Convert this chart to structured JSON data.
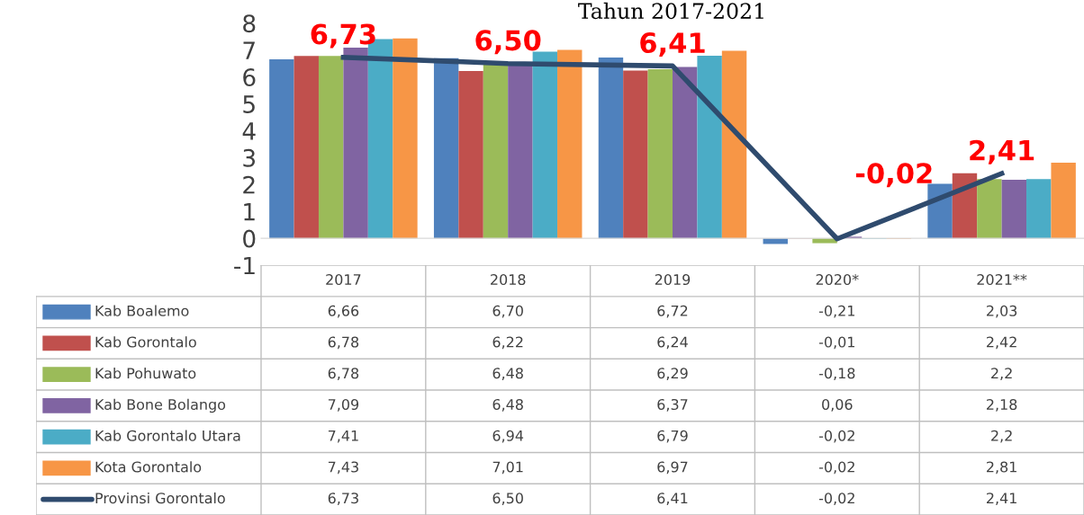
{
  "chart_data": {
    "type": "bar",
    "title": "Tahun 2017-2021",
    "categories": [
      "2017",
      "2018",
      "2019",
      "2020*",
      "2021**"
    ],
    "series": [
      {
        "name": "Kab Boalemo",
        "color": "#4f81bd",
        "values": [
          6.66,
          6.7,
          6.72,
          -0.21,
          2.03
        ],
        "value_labels": [
          "6,66",
          "6,70",
          "6,72",
          "-0,21",
          "2,03"
        ]
      },
      {
        "name": "Kab Gorontalo",
        "color": "#c0504d",
        "values": [
          6.78,
          6.22,
          6.24,
          -0.01,
          2.42
        ],
        "value_labels": [
          "6,78",
          "6,22",
          "6,24",
          "-0,01",
          "2,42"
        ]
      },
      {
        "name": "Kab Pohuwato",
        "color": "#9bbb59",
        "values": [
          6.78,
          6.48,
          6.29,
          -0.18,
          2.2
        ],
        "value_labels": [
          "6,78",
          "6,48",
          "6,29",
          "-0,18",
          "2,2"
        ]
      },
      {
        "name": "Kab Bone Bolango",
        "color": "#8064a2",
        "values": [
          7.09,
          6.48,
          6.37,
          0.06,
          2.18
        ],
        "value_labels": [
          "7,09",
          "6,48",
          "6,37",
          "0,06",
          "2,18"
        ]
      },
      {
        "name": "Kab Gorontalo Utara",
        "color": "#4bacc6",
        "values": [
          7.41,
          6.94,
          6.79,
          -0.02,
          2.2
        ],
        "value_labels": [
          "7,41",
          "6,94",
          "6,79",
          "-0,02",
          "2,2"
        ]
      },
      {
        "name": "Kota Gorontalo",
        "color": "#f79646",
        "values": [
          7.43,
          7.01,
          6.97,
          -0.02,
          2.81
        ],
        "value_labels": [
          "7,43",
          "7,01",
          "6,97",
          "-0,02",
          "2,81"
        ]
      },
      {
        "name": "Provinsi Gorontalo",
        "type": "line",
        "color": "#2f4b6e",
        "values": [
          6.73,
          6.5,
          6.41,
          -0.02,
          2.41
        ],
        "value_labels": [
          "6,73",
          "6,50",
          "6,41",
          "-0,02",
          "2,41"
        ]
      }
    ],
    "ylim": [
      -1,
      8
    ],
    "yticks": [
      -1,
      0,
      1,
      2,
      3,
      4,
      5,
      6,
      7,
      8
    ],
    "data_labels": true,
    "legend": "bottom",
    "marker": "none",
    "line_style": "solid"
  }
}
